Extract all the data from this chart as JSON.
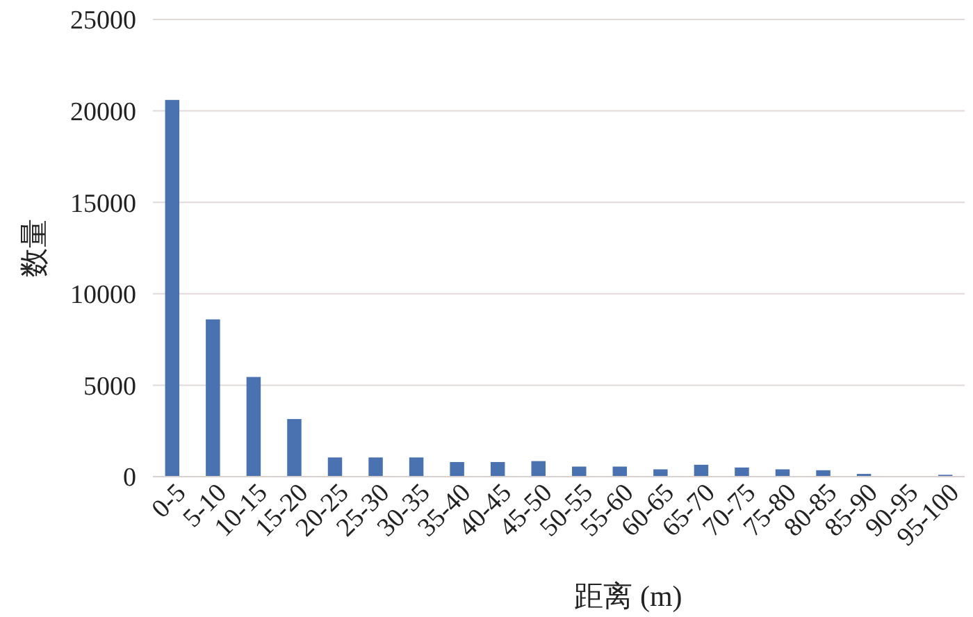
{
  "chart_data": {
    "type": "bar",
    "xlabel": "距离 (m)",
    "ylabel": "数量",
    "categories": [
      "0-5",
      "5-10",
      "10-15",
      "15-20",
      "20-25",
      "25-30",
      "30-35",
      "35-40",
      "40-45",
      "45-50",
      "50-55",
      "55-60",
      "60-65",
      "65-70",
      "70-75",
      "75-80",
      "80-85",
      "85-90",
      "90-95",
      "95-100"
    ],
    "values": [
      20600,
      8600,
      5450,
      3150,
      1050,
      1050,
      1050,
      800,
      800,
      850,
      550,
      550,
      400,
      650,
      500,
      400,
      350,
      150,
      0,
      100
    ],
    "color": "#4a72b0",
    "ylim": [
      0,
      25000
    ],
    "yticks": [
      0,
      5000,
      10000,
      15000,
      20000,
      25000
    ],
    "grid": "y"
  }
}
